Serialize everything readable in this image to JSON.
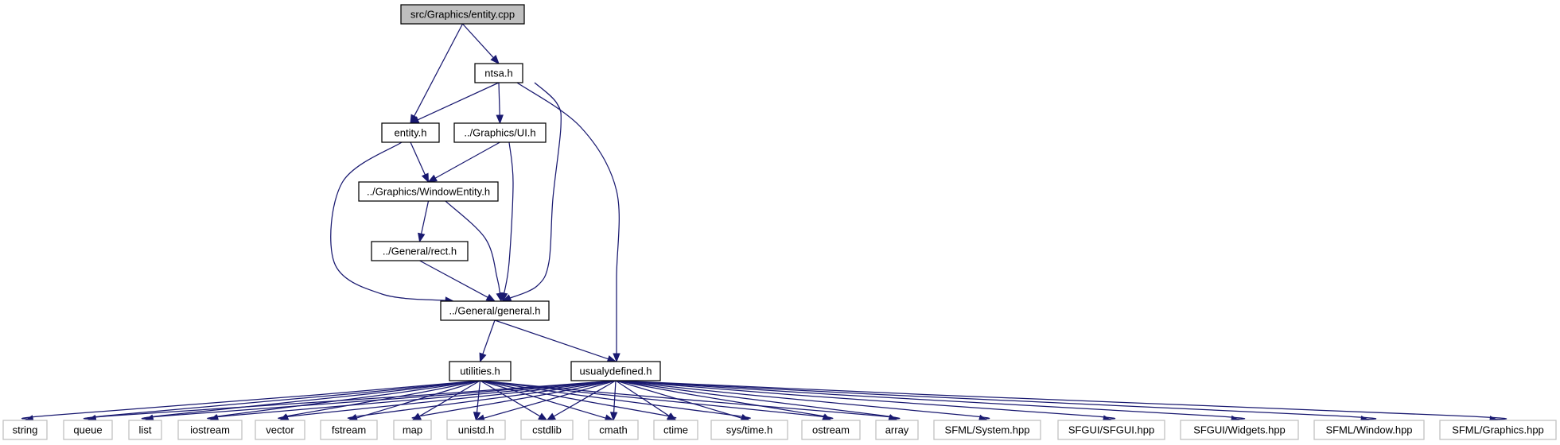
{
  "chart_data": {
    "type": "dependency-graph",
    "title": "",
    "nodes": [
      {
        "id": "entity_cpp",
        "label": "src/Graphics/entity.cpp",
        "kind": "root"
      },
      {
        "id": "ntsa_h",
        "label": "ntsa.h",
        "kind": "local"
      },
      {
        "id": "entity_h",
        "label": "entity.h",
        "kind": "local"
      },
      {
        "id": "ui_h",
        "label": "../Graphics/UI.h",
        "kind": "local"
      },
      {
        "id": "windowentity_h",
        "label": "../Graphics/WindowEntity.h",
        "kind": "local"
      },
      {
        "id": "rect_h",
        "label": "../General/rect.h",
        "kind": "local"
      },
      {
        "id": "general_h",
        "label": "../General/general.h",
        "kind": "local"
      },
      {
        "id": "utilities_h",
        "label": "utilities.h",
        "kind": "local"
      },
      {
        "id": "usualydefined_h",
        "label": "usualydefined.h",
        "kind": "local"
      },
      {
        "id": "string",
        "label": "string",
        "kind": "system"
      },
      {
        "id": "queue",
        "label": "queue",
        "kind": "system"
      },
      {
        "id": "list",
        "label": "list",
        "kind": "system"
      },
      {
        "id": "iostream",
        "label": "iostream",
        "kind": "system"
      },
      {
        "id": "vector",
        "label": "vector",
        "kind": "system"
      },
      {
        "id": "fstream",
        "label": "fstream",
        "kind": "system"
      },
      {
        "id": "map",
        "label": "map",
        "kind": "system"
      },
      {
        "id": "unistd_h",
        "label": "unistd.h",
        "kind": "system"
      },
      {
        "id": "cstdlib",
        "label": "cstdlib",
        "kind": "system"
      },
      {
        "id": "cmath",
        "label": "cmath",
        "kind": "system"
      },
      {
        "id": "ctime",
        "label": "ctime",
        "kind": "system"
      },
      {
        "id": "systime_h",
        "label": "sys/time.h",
        "kind": "system"
      },
      {
        "id": "ostream",
        "label": "ostream",
        "kind": "system"
      },
      {
        "id": "array",
        "label": "array",
        "kind": "system"
      },
      {
        "id": "sfml_system",
        "label": "SFML/System.hpp",
        "kind": "system"
      },
      {
        "id": "sfgui_sfgui",
        "label": "SFGUI/SFGUI.hpp",
        "kind": "system"
      },
      {
        "id": "sfgui_widgets",
        "label": "SFGUI/Widgets.hpp",
        "kind": "system"
      },
      {
        "id": "sfml_window",
        "label": "SFML/Window.hpp",
        "kind": "system"
      },
      {
        "id": "sfml_graphics",
        "label": "SFML/Graphics.hpp",
        "kind": "system"
      }
    ],
    "edges": [
      {
        "from": "entity_cpp",
        "to": "ntsa_h"
      },
      {
        "from": "entity_cpp",
        "to": "entity_h"
      },
      {
        "from": "ntsa_h",
        "to": "entity_h"
      },
      {
        "from": "ntsa_h",
        "to": "ui_h"
      },
      {
        "from": "ntsa_h",
        "to": "general_h"
      },
      {
        "from": "ntsa_h",
        "to": "usualydefined_h"
      },
      {
        "from": "entity_h",
        "to": "windowentity_h"
      },
      {
        "from": "entity_h",
        "to": "general_h"
      },
      {
        "from": "ui_h",
        "to": "windowentity_h"
      },
      {
        "from": "ui_h",
        "to": "general_h"
      },
      {
        "from": "windowentity_h",
        "to": "rect_h"
      },
      {
        "from": "windowentity_h",
        "to": "general_h"
      },
      {
        "from": "rect_h",
        "to": "general_h"
      },
      {
        "from": "general_h",
        "to": "utilities_h"
      },
      {
        "from": "general_h",
        "to": "usualydefined_h"
      },
      {
        "from": "utilities_h",
        "to": "string"
      },
      {
        "from": "utilities_h",
        "to": "queue"
      },
      {
        "from": "utilities_h",
        "to": "list"
      },
      {
        "from": "utilities_h",
        "to": "iostream"
      },
      {
        "from": "utilities_h",
        "to": "vector"
      },
      {
        "from": "utilities_h",
        "to": "fstream"
      },
      {
        "from": "utilities_h",
        "to": "map"
      },
      {
        "from": "utilities_h",
        "to": "unistd_h"
      },
      {
        "from": "utilities_h",
        "to": "cstdlib"
      },
      {
        "from": "utilities_h",
        "to": "cmath"
      },
      {
        "from": "utilities_h",
        "to": "ctime"
      },
      {
        "from": "utilities_h",
        "to": "systime_h"
      },
      {
        "from": "utilities_h",
        "to": "ostream"
      },
      {
        "from": "utilities_h",
        "to": "array"
      },
      {
        "from": "usualydefined_h",
        "to": "queue"
      },
      {
        "from": "usualydefined_h",
        "to": "list"
      },
      {
        "from": "usualydefined_h",
        "to": "iostream"
      },
      {
        "from": "usualydefined_h",
        "to": "vector"
      },
      {
        "from": "usualydefined_h",
        "to": "fstream"
      },
      {
        "from": "usualydefined_h",
        "to": "map"
      },
      {
        "from": "usualydefined_h",
        "to": "unistd_h"
      },
      {
        "from": "usualydefined_h",
        "to": "cstdlib"
      },
      {
        "from": "usualydefined_h",
        "to": "cmath"
      },
      {
        "from": "usualydefined_h",
        "to": "ctime"
      },
      {
        "from": "usualydefined_h",
        "to": "systime_h"
      },
      {
        "from": "usualydefined_h",
        "to": "ostream"
      },
      {
        "from": "usualydefined_h",
        "to": "array"
      },
      {
        "from": "usualydefined_h",
        "to": "sfml_system"
      },
      {
        "from": "usualydefined_h",
        "to": "sfgui_sfgui"
      },
      {
        "from": "usualydefined_h",
        "to": "sfgui_widgets"
      },
      {
        "from": "usualydefined_h",
        "to": "sfml_window"
      },
      {
        "from": "usualydefined_h",
        "to": "sfml_graphics"
      }
    ]
  },
  "colors": {
    "edge": "#191970",
    "root_fill": "#bfbfbf",
    "local_border": "#000000",
    "system_border": "#bfbfbf"
  }
}
